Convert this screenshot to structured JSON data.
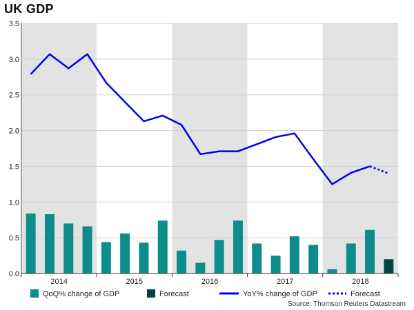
{
  "chart_data": {
    "type": "bar+line",
    "title": "UK GDP",
    "source": "Source: Thomson Reuters Datastream",
    "ylim": [
      0,
      3.5
    ],
    "y_ticks": [
      "0.0",
      "0.5",
      "1.0",
      "1.5",
      "2.0",
      "2.5",
      "3.0",
      "3.5"
    ],
    "year_labels": [
      "2014",
      "2015",
      "2016",
      "2017",
      "2018"
    ],
    "quarters": [
      "2014 Q1",
      "2014 Q2",
      "2014 Q3",
      "2014 Q4",
      "2015 Q1",
      "2015 Q2",
      "2015 Q3",
      "2015 Q4",
      "2016 Q1",
      "2016 Q2",
      "2016 Q3",
      "2016 Q4",
      "2017 Q1",
      "2017 Q2",
      "2017 Q3",
      "2017 Q4",
      "2018 Q1",
      "2018 Q2",
      "2018 Q3",
      "2018 Q4"
    ],
    "series": [
      {
        "name": "QoQ% change of GDP",
        "kind": "bar",
        "color": "#0e8c8c",
        "values": [
          0.84,
          0.83,
          0.7,
          0.66,
          0.44,
          0.56,
          0.43,
          0.74,
          0.32,
          0.15,
          0.47,
          0.74,
          0.42,
          0.25,
          0.52,
          0.4,
          0.06,
          0.42,
          0.61,
          null
        ]
      },
      {
        "name": "Forecast",
        "kind": "bar",
        "color": "#064545",
        "values": [
          null,
          null,
          null,
          null,
          null,
          null,
          null,
          null,
          null,
          null,
          null,
          null,
          null,
          null,
          null,
          null,
          null,
          null,
          null,
          0.2
        ]
      },
      {
        "name": "YoY% change of GDP",
        "kind": "line",
        "color": "#0000ee",
        "values": [
          2.79,
          3.07,
          2.87,
          3.07,
          2.67,
          2.4,
          2.13,
          2.21,
          2.08,
          1.67,
          1.71,
          1.71,
          1.81,
          1.91,
          1.96,
          1.6,
          1.25,
          1.41,
          1.5,
          null
        ]
      },
      {
        "name": "Forecast",
        "kind": "line-dotted",
        "color": "#0000ee",
        "values": [
          null,
          null,
          null,
          null,
          null,
          null,
          null,
          null,
          null,
          null,
          null,
          null,
          null,
          null,
          null,
          null,
          null,
          null,
          1.5,
          1.4
        ]
      }
    ]
  }
}
